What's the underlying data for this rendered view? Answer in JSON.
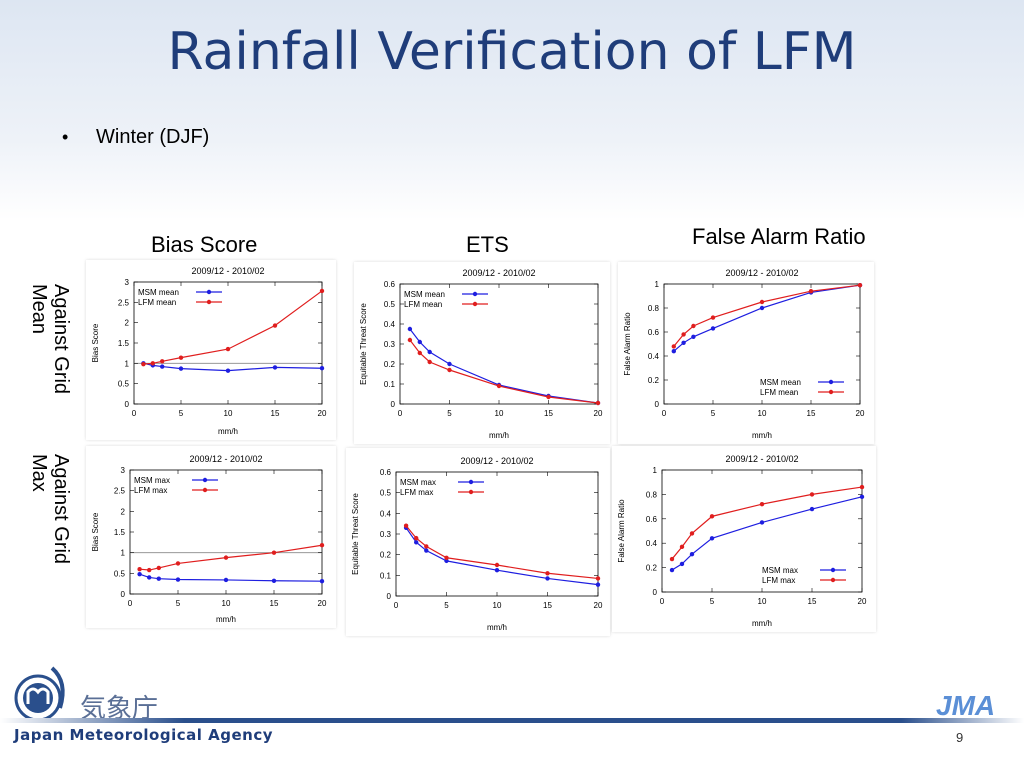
{
  "slide": {
    "title": "Rainfall Verification of LFM",
    "bullet": "Winter (DJF)",
    "bullet_symbol": "•",
    "page_number": "9"
  },
  "columns": [
    "Bias Score",
    "ETS",
    "False Alarm Ratio"
  ],
  "rows": [
    "Against Grid\nMean",
    "Against Grid\nMax"
  ],
  "footer": {
    "agency_english": "Japan Meteorological Agency",
    "agency_kanji": "気象庁",
    "logo_text": "JMA"
  },
  "colors": {
    "msm": "#1e1ee0",
    "lfm": "#e01e1e",
    "title": "#1f3d7a",
    "footer_bar": "#2a4f8c"
  },
  "chart_data": [
    {
      "type": "line",
      "title": "2009/12 - 2010/02",
      "xlabel": "mm/h",
      "ylabel": "Bias Score",
      "xlim": [
        0,
        20
      ],
      "ylim": [
        0,
        3
      ],
      "xticks": [
        0,
        5,
        10,
        15,
        20
      ],
      "yticks": [
        0,
        0.5,
        1,
        1.5,
        2,
        2.5,
        3
      ],
      "ref_line": 1,
      "legend": "top-left",
      "series": [
        {
          "name": "MSM mean",
          "x": [
            1,
            2,
            3,
            5,
            10,
            15,
            20
          ],
          "y": [
            1.0,
            0.95,
            0.92,
            0.87,
            0.82,
            0.9,
            0.88
          ]
        },
        {
          "name": "LFM mean",
          "x": [
            1,
            2,
            3,
            5,
            10,
            15,
            20
          ],
          "y": [
            0.98,
            1.0,
            1.05,
            1.14,
            1.35,
            1.93,
            2.78
          ]
        }
      ]
    },
    {
      "type": "line",
      "title": "2009/12 - 2010/02",
      "xlabel": "mm/h",
      "ylabel": "Equitable Threat Score",
      "xlim": [
        0,
        20
      ],
      "ylim": [
        0,
        0.6
      ],
      "xticks": [
        0,
        5,
        10,
        15,
        20
      ],
      "yticks": [
        0,
        0.1,
        0.2,
        0.3,
        0.4,
        0.5,
        0.6
      ],
      "legend": "top-left",
      "series": [
        {
          "name": "MSM mean",
          "x": [
            1,
            2,
            3,
            5,
            10,
            15,
            20
          ],
          "y": [
            0.375,
            0.31,
            0.26,
            0.2,
            0.095,
            0.04,
            0.005
          ]
        },
        {
          "name": "LFM mean",
          "x": [
            1,
            2,
            3,
            5,
            10,
            15,
            20
          ],
          "y": [
            0.32,
            0.255,
            0.21,
            0.17,
            0.09,
            0.035,
            0.005
          ]
        }
      ]
    },
    {
      "type": "line",
      "title": "2009/12 - 2010/02",
      "xlabel": "mm/h",
      "ylabel": "False Alarm Ratio",
      "xlim": [
        0,
        20
      ],
      "ylim": [
        0,
        1
      ],
      "xticks": [
        0,
        5,
        10,
        15,
        20
      ],
      "yticks": [
        0,
        0.2,
        0.4,
        0.6,
        0.8,
        1
      ],
      "legend": "bottom-right",
      "series": [
        {
          "name": "MSM mean",
          "x": [
            1,
            2,
            3,
            5,
            10,
            15,
            20
          ],
          "y": [
            0.44,
            0.51,
            0.56,
            0.63,
            0.8,
            0.93,
            0.99
          ]
        },
        {
          "name": "LFM mean",
          "x": [
            1,
            2,
            3,
            5,
            10,
            15,
            20
          ],
          "y": [
            0.48,
            0.58,
            0.65,
            0.72,
            0.85,
            0.94,
            0.99
          ]
        }
      ]
    },
    {
      "type": "line",
      "title": "2009/12 - 2010/02",
      "xlabel": "mm/h",
      "ylabel": "Bias Score",
      "xlim": [
        0,
        20
      ],
      "ylim": [
        0,
        3
      ],
      "xticks": [
        0,
        5,
        10,
        15,
        20
      ],
      "yticks": [
        0,
        0.5,
        1,
        1.5,
        2,
        2.5,
        3
      ],
      "ref_line": 1,
      "legend": "top-left",
      "series": [
        {
          "name": "MSM max",
          "x": [
            1,
            2,
            3,
            5,
            10,
            15,
            20
          ],
          "y": [
            0.48,
            0.4,
            0.37,
            0.35,
            0.34,
            0.32,
            0.31
          ]
        },
        {
          "name": "LFM max",
          "x": [
            1,
            2,
            3,
            5,
            10,
            15,
            20
          ],
          "y": [
            0.6,
            0.58,
            0.63,
            0.74,
            0.88,
            1.0,
            1.18
          ]
        }
      ]
    },
    {
      "type": "line",
      "title": "2009/12 - 2010/02",
      "xlabel": "mm/h",
      "ylabel": "Equitable Threat Score",
      "xlim": [
        0,
        20
      ],
      "ylim": [
        0,
        0.6
      ],
      "xticks": [
        0,
        5,
        10,
        15,
        20
      ],
      "yticks": [
        0,
        0.1,
        0.2,
        0.3,
        0.4,
        0.5,
        0.6
      ],
      "legend": "top-left",
      "series": [
        {
          "name": "MSM max",
          "x": [
            1,
            2,
            3,
            5,
            10,
            15,
            20
          ],
          "y": [
            0.33,
            0.26,
            0.22,
            0.17,
            0.125,
            0.085,
            0.055
          ]
        },
        {
          "name": "LFM max",
          "x": [
            1,
            2,
            3,
            5,
            10,
            15,
            20
          ],
          "y": [
            0.34,
            0.28,
            0.24,
            0.185,
            0.15,
            0.11,
            0.085
          ]
        }
      ]
    },
    {
      "type": "line",
      "title": "2009/12 - 2010/02",
      "xlabel": "mm/h",
      "ylabel": "False Alarm Ratio",
      "xlim": [
        0,
        20
      ],
      "ylim": [
        0,
        1
      ],
      "xticks": [
        0,
        5,
        10,
        15,
        20
      ],
      "yticks": [
        0,
        0.2,
        0.4,
        0.6,
        0.8,
        1
      ],
      "legend": "bottom-right",
      "series": [
        {
          "name": "MSM max",
          "x": [
            1,
            2,
            3,
            5,
            10,
            15,
            20
          ],
          "y": [
            0.18,
            0.23,
            0.31,
            0.44,
            0.57,
            0.68,
            0.78
          ]
        },
        {
          "name": "LFM max",
          "x": [
            1,
            2,
            3,
            5,
            10,
            15,
            20
          ],
          "y": [
            0.27,
            0.37,
            0.48,
            0.62,
            0.72,
            0.8,
            0.86
          ]
        }
      ]
    }
  ]
}
